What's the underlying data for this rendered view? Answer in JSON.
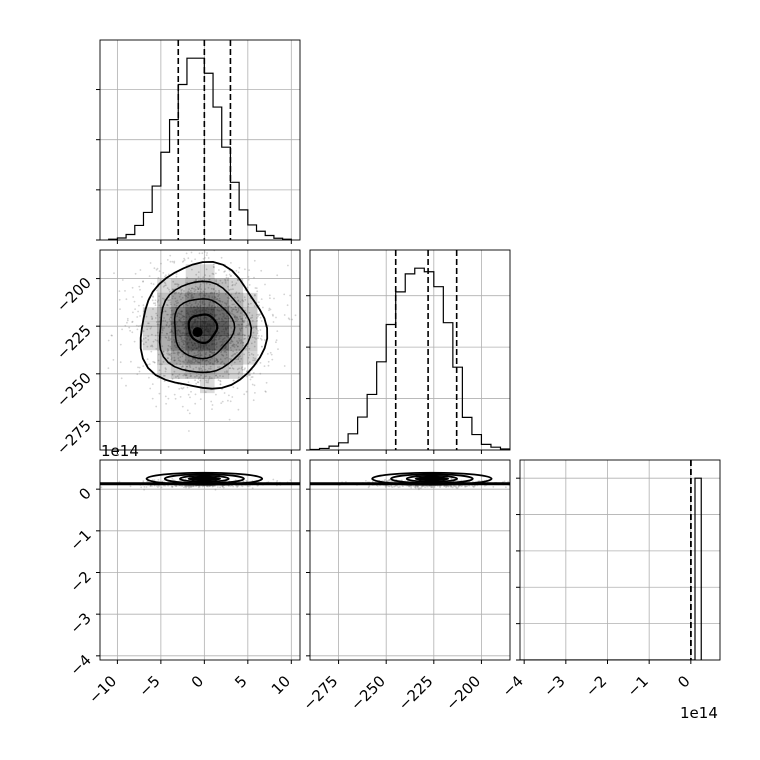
{
  "chart_data": {
    "type": "corner",
    "colors": {
      "line": "#000000",
      "grid": "#b0b0b0",
      "scatter": "#808080"
    },
    "grid": true,
    "quantiles_shown": "dashed vertical lines on diagonal histograms",
    "params": [
      {
        "index": 0,
        "range": [
          -12,
          11
        ],
        "ticks": [
          -10,
          -5,
          0,
          5,
          10
        ],
        "tick_labels": [
          "−10",
          "−5",
          "0",
          "5",
          "10"
        ],
        "quantiles": [
          -3.0,
          0.0,
          3.0
        ]
      },
      {
        "index": 1,
        "range": [
          -290,
          -185
        ],
        "ticks": [
          -275,
          -250,
          -225,
          -200
        ],
        "tick_labels": [
          "−275",
          "−250",
          "−225",
          "−200"
        ],
        "quantiles": [
          -245.0,
          -228.0,
          -213.0
        ]
      },
      {
        "index": 2,
        "range": [
          -4.1,
          0.7
        ],
        "ticks": [
          -4,
          -3,
          -2,
          -1,
          0
        ],
        "tick_labels": [
          "−4",
          "−3",
          "−2",
          "−1",
          "0"
        ],
        "offset_text": "1e14",
        "quantiles": [
          0.0,
          0.0,
          0.0
        ]
      }
    ],
    "histograms": [
      {
        "param": 0,
        "bin_edges": [
          -11,
          -10,
          -9,
          -8,
          -7,
          -6,
          -5,
          -4,
          -3,
          -2,
          -1,
          0,
          1,
          2,
          3,
          4,
          5,
          6,
          7,
          8,
          9,
          10
        ],
        "counts": [
          0.3,
          0.8,
          2.2,
          5.8,
          11,
          21.5,
          35,
          48,
          62,
          72.5,
          72.5,
          66.5,
          53,
          37,
          23,
          12,
          6,
          3.5,
          1.8,
          0.7,
          0.3
        ],
        "count_axis_ticks": [
          0,
          20,
          40,
          60
        ]
      },
      {
        "param": 1,
        "bin_edges": [
          -290,
          -285,
          -280,
          -275,
          -270,
          -265,
          -260,
          -255,
          -250,
          -245,
          -240,
          -235,
          -230,
          -225,
          -220,
          -215,
          -210,
          -205,
          -200,
          -195,
          -190,
          -185
        ],
        "counts": [
          0.2,
          0.6,
          1.5,
          2.8,
          6.3,
          12.8,
          21.6,
          34.3,
          48.8,
          61.5,
          68.5,
          70.7,
          69.3,
          63.5,
          49.5,
          32.2,
          12.7,
          6,
          2.2,
          1.1,
          0.4
        ],
        "count_axis_ticks": [
          0,
          20,
          40,
          60
        ]
      },
      {
        "param": 2,
        "bin_edges": [
          -4.1,
          0.1,
          0.25
        ],
        "counts": [
          0,
          50
        ],
        "count_axis_ticks": [
          0,
          10,
          20,
          30,
          40,
          50
        ]
      }
    ],
    "scatter_panels": [
      {
        "x_param": 0,
        "y_param": 1,
        "center": [
          -0.2,
          -226
        ],
        "spread": [
          3.6,
          16.5
        ],
        "levels": "4 contour levels with density shading"
      },
      {
        "x_param": 0,
        "y_param": 2,
        "center": [
          0,
          0.13
        ],
        "spread": [
          3.5,
          0.04
        ]
      },
      {
        "x_param": 1,
        "y_param": 2,
        "center": [
          -226,
          0.13
        ],
        "spread": [
          16.5,
          0.04
        ]
      }
    ]
  }
}
